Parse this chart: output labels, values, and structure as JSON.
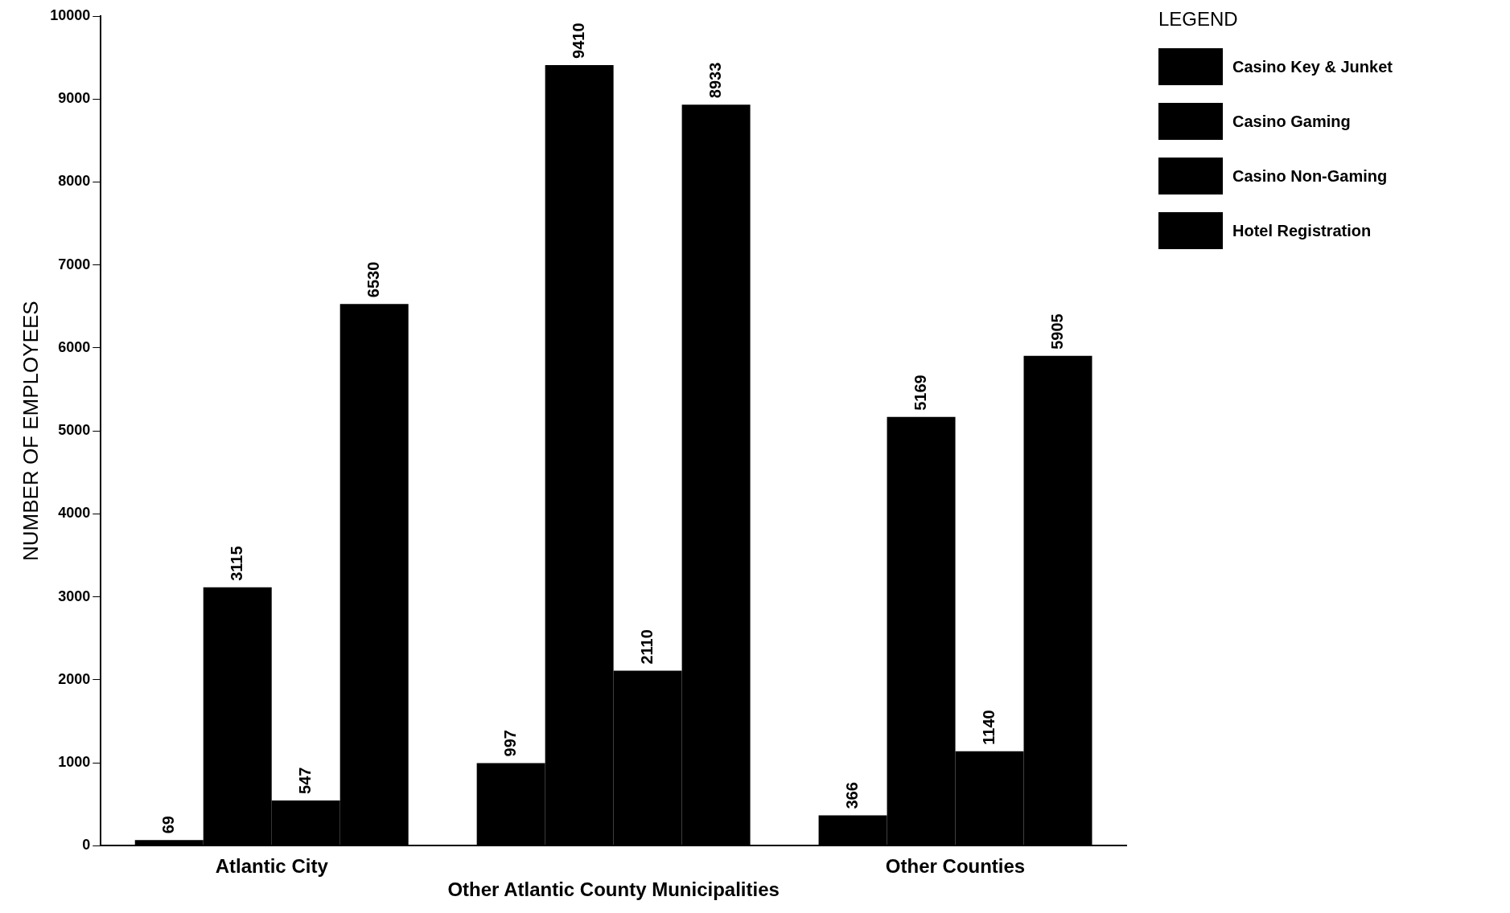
{
  "chart_data": {
    "type": "bar",
    "xlabel": null,
    "ylabel": "NUMBER OF EMPLOYEES",
    "legend_title": "LEGEND",
    "categories": [
      "Atlantic City",
      "Other Atlantic County Municipalities",
      "Other Counties"
    ],
    "series": [
      {
        "name": "Casino Key & Junket",
        "color": "#000000",
        "values": [
          69,
          997,
          366
        ]
      },
      {
        "name": "Casino Gaming",
        "color": "#000000",
        "values": [
          3115,
          9410,
          5169
        ]
      },
      {
        "name": "Casino Non-Gaming",
        "color": "#000000",
        "values": [
          547,
          2110,
          1140
        ]
      },
      {
        "name": "Hotel Registration",
        "color": "#000000",
        "values": [
          6530,
          8933,
          5905
        ]
      }
    ],
    "ylim": [
      0,
      10000
    ],
    "yticks": [
      0,
      1000,
      2000,
      3000,
      4000,
      5000,
      6000,
      7000,
      8000,
      9000,
      10000
    ],
    "grid": false,
    "legend": "top right",
    "data_labels": true
  }
}
